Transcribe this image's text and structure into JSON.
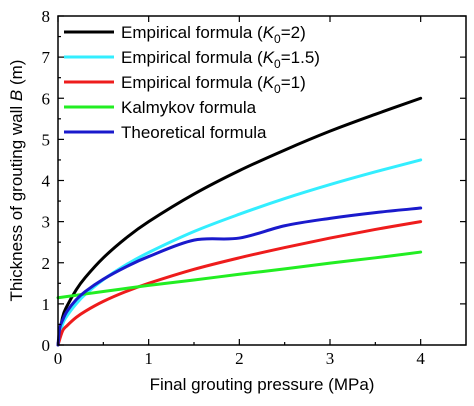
{
  "chart_data": {
    "type": "line",
    "xlabel": "Final grouting pressure (MPa)",
    "ylabel_parts": [
      "Thickness of grouting wall ",
      "B",
      " (m)"
    ],
    "xlim": [
      0,
      4.5
    ],
    "ylim": [
      0,
      8
    ],
    "xticks": [
      0,
      1,
      2,
      3,
      4
    ],
    "yticks": [
      0,
      1,
      2,
      3,
      4,
      5,
      6,
      7,
      8
    ],
    "legend_position": "top-left",
    "series": [
      {
        "name": "Empirical formula (K0=2)",
        "legend_parts": [
          "Empirical formula (",
          "K",
          "0",
          "=2)"
        ],
        "color": "#000000",
        "x": [
          0,
          0.05,
          0.1,
          0.2,
          0.3,
          0.5,
          0.75,
          1,
          1.5,
          2,
          2.5,
          3,
          3.5,
          4
        ],
        "y": [
          0,
          0.67,
          0.95,
          1.34,
          1.64,
          2.12,
          2.6,
          3.0,
          3.67,
          4.24,
          4.74,
          5.2,
          5.61,
          6.0
        ]
      },
      {
        "name": "Empirical formula (K0=1.5)",
        "legend_parts": [
          "Empirical formula (",
          "K",
          "0",
          "=1.5)"
        ],
        "color": "#33eeff",
        "x": [
          0,
          0.05,
          0.1,
          0.2,
          0.3,
          0.5,
          0.75,
          1,
          1.5,
          2,
          2.5,
          3,
          3.5,
          4
        ],
        "y": [
          0,
          0.5,
          0.71,
          1.0,
          1.23,
          1.59,
          1.95,
          2.25,
          2.76,
          3.18,
          3.56,
          3.9,
          4.21,
          4.5
        ]
      },
      {
        "name": "Empirical formula (K0=1)",
        "legend_parts": [
          "Empirical formula (",
          "K",
          "0",
          "=1)"
        ],
        "color": "#ee1c1c",
        "x": [
          0,
          0.05,
          0.1,
          0.2,
          0.3,
          0.5,
          0.75,
          1,
          1.5,
          2,
          2.5,
          3,
          3.5,
          4
        ],
        "y": [
          0,
          0.34,
          0.47,
          0.67,
          0.82,
          1.06,
          1.3,
          1.5,
          1.84,
          2.12,
          2.37,
          2.6,
          2.81,
          3.0
        ]
      },
      {
        "name": "Kalmykov formula",
        "legend_parts": [
          "Kalmykov formula"
        ],
        "color": "#22ee22",
        "x": [
          0,
          0.5,
          1,
          1.5,
          2,
          2.5,
          3,
          3.5,
          4
        ],
        "y": [
          1.15,
          1.3,
          1.45,
          1.58,
          1.72,
          1.85,
          1.99,
          2.12,
          2.26
        ]
      },
      {
        "name": "Theoretical formula",
        "legend_parts": [
          "Theoretical formula"
        ],
        "color": "#1a1acc",
        "x": [
          0,
          0.02,
          0.05,
          0.1,
          0.2,
          0.3,
          0.5,
          0.75,
          1,
          1.5,
          2,
          2.5,
          3,
          3.5,
          4
        ],
        "y": [
          0,
          0.42,
          0.6,
          0.82,
          1.1,
          1.3,
          1.6,
          1.9,
          2.15,
          2.55,
          2.6,
          2.9,
          3.08,
          3.22,
          3.33
        ]
      }
    ]
  }
}
